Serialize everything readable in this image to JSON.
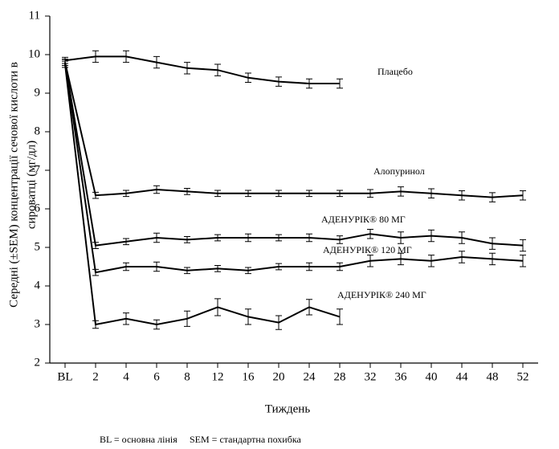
{
  "chart_data": {
    "type": "line",
    "ylabel": [
      "Середні (±SEM) концентрації сечової кислоти в",
      "сироватці  (мг/дл)"
    ],
    "xlabel": "Тиждень",
    "categories": [
      "BL",
      "2",
      "4",
      "6",
      "8",
      "12",
      "16",
      "20",
      "24",
      "28",
      "32",
      "36",
      "40",
      "44",
      "48",
      "52"
    ],
    "ylim": [
      2,
      11
    ],
    "yticks": [
      2,
      3,
      4,
      5,
      6,
      7,
      8,
      9,
      10,
      11
    ],
    "grid": false,
    "series": [
      {
        "name": "Плацебо",
        "color": "#000000",
        "values": [
          9.85,
          9.95,
          9.95,
          9.8,
          9.65,
          9.6,
          9.4,
          9.3,
          9.25,
          9.25,
          null,
          null,
          null,
          null,
          null,
          null
        ],
        "errors": [
          0.08,
          0.15,
          0.15,
          0.15,
          0.15,
          0.15,
          0.12,
          0.12,
          0.12,
          0.12,
          null,
          null,
          null,
          null,
          null,
          null
        ]
      },
      {
        "name": "Алопуринол",
        "color": "#000000",
        "values": [
          9.8,
          6.35,
          6.4,
          6.5,
          6.45,
          6.4,
          6.4,
          6.4,
          6.4,
          6.4,
          6.4,
          6.45,
          6.4,
          6.35,
          6.3,
          6.35
        ],
        "errors": [
          0.08,
          0.08,
          0.08,
          0.1,
          0.08,
          0.08,
          0.08,
          0.08,
          0.08,
          0.08,
          0.1,
          0.12,
          0.12,
          0.12,
          0.12,
          0.12
        ]
      },
      {
        "name": "АДЕНУРІК® 80 МГ",
        "color": "#000000",
        "values": [
          9.8,
          5.05,
          5.15,
          5.25,
          5.2,
          5.25,
          5.25,
          5.25,
          5.25,
          5.2,
          5.35,
          5.25,
          5.3,
          5.25,
          5.1,
          5.05
        ],
        "errors": [
          0.08,
          0.08,
          0.08,
          0.12,
          0.08,
          0.08,
          0.1,
          0.08,
          0.1,
          0.1,
          0.12,
          0.15,
          0.15,
          0.15,
          0.15,
          0.15
        ]
      },
      {
        "name": "АДЕНУРІК® 120 МГ",
        "color": "#000000",
        "values": [
          9.8,
          4.35,
          4.5,
          4.5,
          4.4,
          4.45,
          4.4,
          4.5,
          4.5,
          4.5,
          4.65,
          4.7,
          4.65,
          4.75,
          4.7,
          4.65
        ],
        "errors": [
          0.08,
          0.08,
          0.1,
          0.12,
          0.08,
          0.08,
          0.08,
          0.08,
          0.1,
          0.1,
          0.15,
          0.15,
          0.15,
          0.15,
          0.15,
          0.15
        ]
      },
      {
        "name": "АДЕНУРІК® 240 МГ",
        "color": "#000000",
        "values": [
          9.75,
          3.0,
          3.15,
          3.0,
          3.15,
          3.45,
          3.2,
          3.05,
          3.45,
          3.2,
          null,
          null,
          null,
          null,
          null,
          null
        ],
        "errors": [
          0.08,
          0.1,
          0.15,
          0.12,
          0.2,
          0.22,
          0.2,
          0.18,
          0.2,
          0.2,
          null,
          null,
          null,
          null,
          null,
          null
        ]
      }
    ],
    "notes": [
      "BL = основна лінія",
      "SEM = стандартна похибка"
    ]
  }
}
